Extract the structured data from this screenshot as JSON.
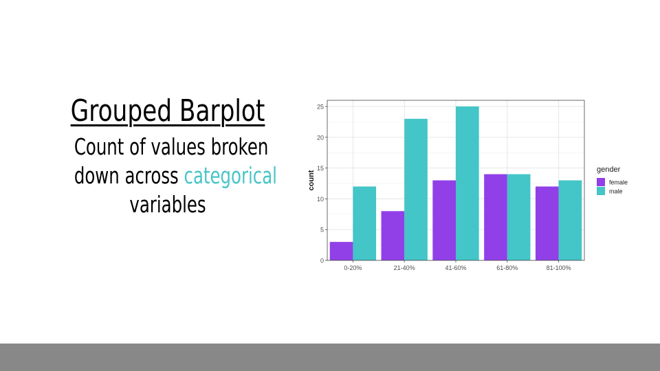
{
  "slide": {
    "title": "Grouped Barplot",
    "subtitle_line1": "Count of values broken",
    "subtitle_line2_prefix": "down across ",
    "subtitle_line2_accent": "categorical",
    "subtitle_line3": "variables",
    "accent_color": "#48c5c7",
    "footer_color": "#888888"
  },
  "chart_data": {
    "type": "bar",
    "categories": [
      "0-20%",
      "21-40%",
      "41-60%",
      "61-80%",
      "81-100%"
    ],
    "series": [
      {
        "name": "female",
        "values": [
          3,
          8,
          13,
          14,
          12
        ],
        "color": "#9140e8"
      },
      {
        "name": "male",
        "values": [
          12,
          23,
          25,
          14,
          13
        ],
        "color": "#44c5c8"
      }
    ],
    "title": "",
    "xlabel": "",
    "ylabel": "count",
    "ylim": [
      0,
      26
    ],
    "yticks": [
      0,
      5,
      10,
      15,
      20,
      25
    ],
    "legend_title": "gender",
    "legend_position": "right",
    "grid": true
  }
}
